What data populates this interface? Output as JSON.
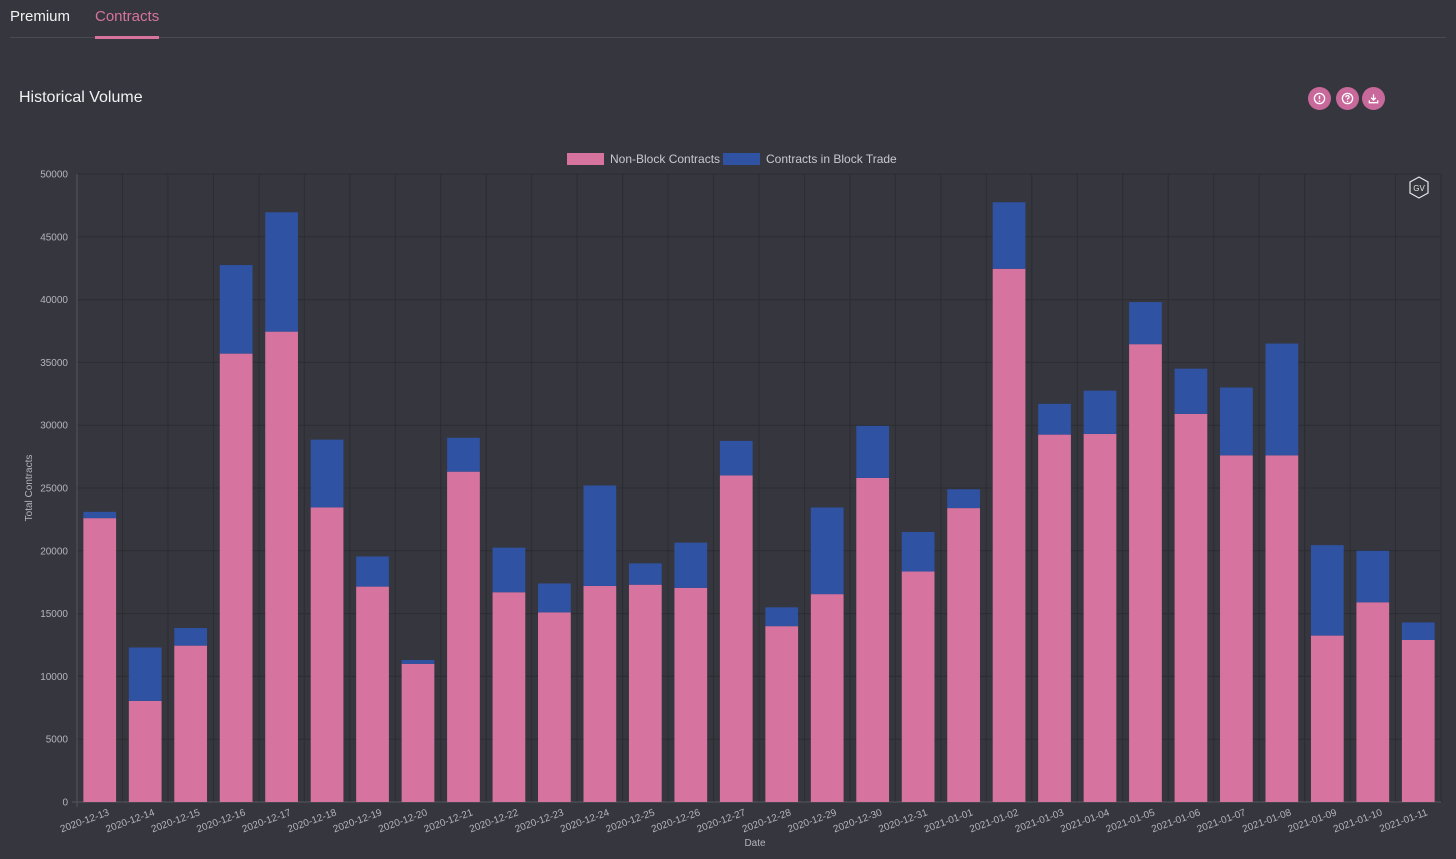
{
  "tabs": [
    {
      "label": "Premium",
      "active": false
    },
    {
      "label": "Contracts",
      "active": true
    }
  ],
  "panel": {
    "title": "Historical Volume",
    "actions": [
      {
        "icon": "info-icon"
      },
      {
        "icon": "help-icon"
      },
      {
        "icon": "download-icon"
      }
    ],
    "badge": "GV"
  },
  "colors": {
    "non_block": "#d6749f",
    "block": "#2f52a3",
    "background": "#36363e",
    "accent": "#d6749f"
  },
  "chart_data": {
    "type": "bar",
    "stacked": true,
    "title": "",
    "xlabel": "Date",
    "ylabel": "Total Contracts",
    "ylim": [
      0,
      50000
    ],
    "yticks": [
      0,
      5000,
      10000,
      15000,
      20000,
      25000,
      30000,
      35000,
      40000,
      45000,
      50000
    ],
    "grid": true,
    "legend_position": "top-center",
    "categories": [
      "2020-12-13",
      "2020-12-14",
      "2020-12-15",
      "2020-12-16",
      "2020-12-17",
      "2020-12-18",
      "2020-12-19",
      "2020-12-20",
      "2020-12-21",
      "2020-12-22",
      "2020-12-23",
      "2020-12-24",
      "2020-12-25",
      "2020-12-26",
      "2020-12-27",
      "2020-12-28",
      "2020-12-29",
      "2020-12-30",
      "2020-12-31",
      "2021-01-01",
      "2021-01-02",
      "2021-01-03",
      "2021-01-04",
      "2021-01-05",
      "2021-01-06",
      "2021-01-07",
      "2021-01-08",
      "2021-01-09",
      "2021-01-10",
      "2021-01-11"
    ],
    "series": [
      {
        "name": "Non-Block Contracts",
        "color": "#d6749f",
        "values": [
          22600,
          8050,
          12450,
          35700,
          37450,
          23450,
          17150,
          11000,
          26300,
          16700,
          15100,
          17200,
          17300,
          17050,
          26000,
          14000,
          16550,
          25800,
          18350,
          23400,
          42450,
          29250,
          29300,
          36450,
          30900,
          27600,
          27600,
          13250,
          15900,
          12900
        ]
      },
      {
        "name": "Contracts in Block Trade",
        "color": "#2f52a3",
        "values": [
          500,
          4250,
          1400,
          7050,
          9500,
          5400,
          2400,
          300,
          2700,
          3550,
          2300,
          8000,
          1700,
          3600,
          2750,
          1500,
          6900,
          4150,
          3150,
          1500,
          5300,
          2450,
          3450,
          3350,
          3600,
          5400,
          8900,
          7200,
          4100,
          1400
        ]
      }
    ]
  }
}
